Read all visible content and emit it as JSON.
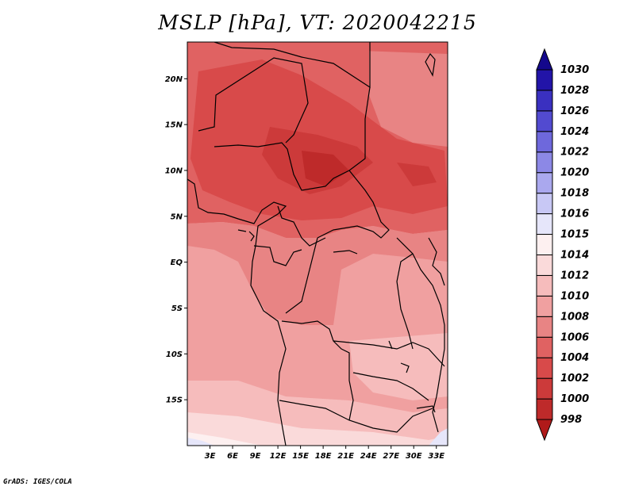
{
  "title": "MSLP [hPa], VT: 2020042215",
  "credit": "GrADS: IGES/COLA",
  "map": {
    "lat_labels": [
      "20N",
      "15N",
      "10N",
      "5N",
      "EQ",
      "5S",
      "10S",
      "15S"
    ],
    "lon_labels": [
      "3E",
      "6E",
      "9E",
      "12E",
      "15E",
      "18E",
      "21E",
      "24E",
      "27E",
      "30E",
      "33E"
    ],
    "extent": {
      "lon_min": 0,
      "lon_max": 34.5,
      "lat_min": -20,
      "lat_max": 24
    }
  },
  "colorbar": {
    "levels": [
      "998",
      "1000",
      "1002",
      "1004",
      "1006",
      "1008",
      "1010",
      "1012",
      "1014",
      "1015",
      "1016",
      "1018",
      "1020",
      "1022",
      "1024",
      "1026",
      "1028",
      "1030"
    ],
    "colors": [
      "#b01a1a",
      "#be2a2a",
      "#cc3a3a",
      "#d84a4a",
      "#e06262",
      "#e88484",
      "#f0a0a0",
      "#f6bcbc",
      "#fadada",
      "#fdf0f0",
      "#e6e6fa",
      "#c8c8f5",
      "#aaa8ee",
      "#8c88e6",
      "#6e68dc",
      "#524ad0",
      "#3a30c0",
      "#2214a8",
      "#14088c"
    ]
  }
}
